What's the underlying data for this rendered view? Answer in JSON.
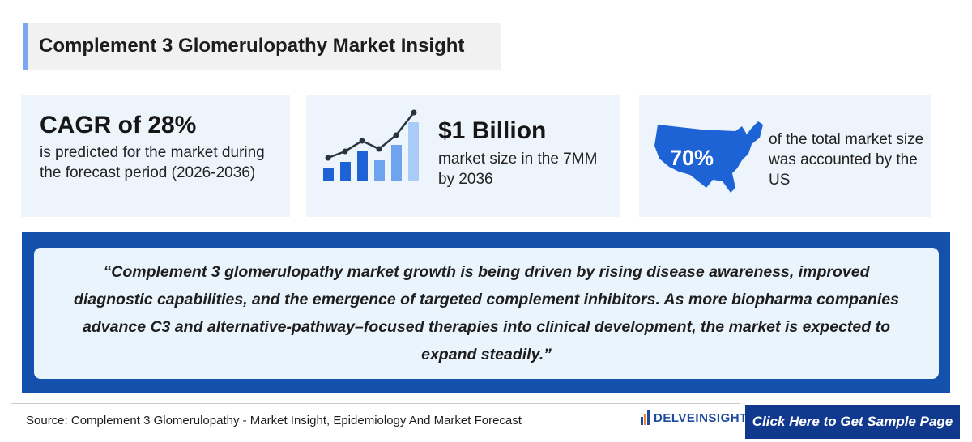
{
  "header": {
    "title": "Complement 3 Glomerulopathy Market Insight"
  },
  "stats": {
    "cagr": {
      "headline": "CAGR of 28%",
      "text": "is predicted for the market during the forecast period (2026-2036)"
    },
    "market": {
      "headline": "$1 Billion",
      "text": "market size in the 7MM by 2036",
      "icon": "growth-bar-chart-icon"
    },
    "us": {
      "headline": "70%",
      "text": "of the total market size was accounted by the US",
      "icon": "usa-map-icon"
    }
  },
  "quote": {
    "text": "“Complement 3 glomerulopathy market growth is being driven by rising disease awareness, improved diagnostic capabilities, and the emergence of targeted complement inhibitors. As more biopharma companies advance C3 and alternative-pathway–focused therapies into clinical development, the market is expected to expand steadily.”"
  },
  "footer": {
    "source": "Source: Complement 3 Glomerulopathy - Market Insight, Epidemiology And Market Forecast",
    "logo_text": "DELVEINSIGHT",
    "cta_label": "Click Here to Get Sample Page"
  },
  "colors": {
    "accent": "#7aa7ef",
    "brand_blue": "#1351ad",
    "cta_blue": "#10398d",
    "map_blue": "#1e63d6",
    "card_bg": "#eef4fb"
  }
}
